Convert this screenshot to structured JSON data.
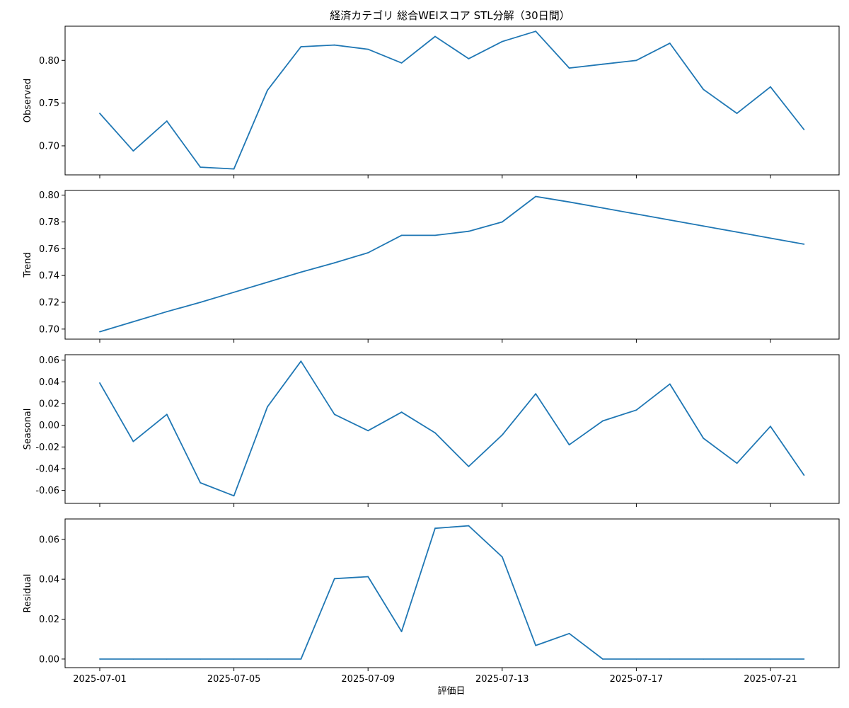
{
  "chart_data": {
    "type": "line",
    "title": "経済カテゴリ 総合WEIスコア STL分解（30日間）",
    "xlabel": "評価日",
    "x": [
      "2025-07-01",
      "2025-07-02",
      "2025-07-03",
      "2025-07-04",
      "2025-07-05",
      "2025-07-06",
      "2025-07-07",
      "2025-07-08",
      "2025-07-09",
      "2025-07-10",
      "2025-07-11",
      "2025-07-12",
      "2025-07-13",
      "2025-07-14",
      "2025-07-15",
      "2025-07-16",
      "2025-07-17",
      "2025-07-18",
      "2025-07-19",
      "2025-07-20",
      "2025-07-21",
      "2025-07-22"
    ],
    "x_ticks": [
      "2025-07-01",
      "2025-07-05",
      "2025-07-09",
      "2025-07-13",
      "2025-07-17",
      "2025-07-21"
    ],
    "color": "#1f77b4",
    "panels": [
      {
        "ylabel": "Observed",
        "ylim": [
          0.666,
          0.84
        ],
        "yticks": [
          "0.70",
          "0.75",
          "0.80"
        ],
        "values": [
          0.738,
          0.694,
          0.729,
          0.675,
          0.673,
          0.765,
          0.816,
          0.818,
          0.813,
          0.797,
          0.828,
          0.802,
          0.822,
          0.834,
          0.791,
          0.7955,
          0.8,
          0.82,
          0.766,
          0.738,
          0.769,
          0.719
        ]
      },
      {
        "ylabel": "Trend",
        "ylim": [
          0.6925,
          0.8035
        ],
        "yticks": [
          "0.70",
          "0.72",
          "0.74",
          "0.76",
          "0.78",
          "0.80"
        ],
        "values": [
          0.698,
          0.7055,
          0.713,
          0.72,
          0.7275,
          0.735,
          0.7425,
          0.7495,
          0.757,
          0.77,
          0.77,
          0.773,
          0.78,
          0.799,
          0.7949,
          0.7904,
          0.7859,
          0.7814,
          0.7769,
          0.7724,
          0.7679,
          0.7634
        ]
      },
      {
        "ylabel": "Seasonal",
        "ylim": [
          -0.072,
          0.065
        ],
        "yticks": [
          "-0.06",
          "-0.04",
          "-0.02",
          "0.00",
          "0.02",
          "0.04",
          "0.06"
        ],
        "values": [
          0.039,
          -0.015,
          0.01,
          -0.053,
          -0.065,
          0.017,
          0.059,
          0.01,
          -0.005,
          0.012,
          -0.007,
          -0.038,
          -0.009,
          0.029,
          -0.018,
          0.004,
          0.014,
          0.038,
          -0.012,
          -0.035,
          -0.001,
          -0.046
        ]
      },
      {
        "ylabel": "Residual",
        "ylim": [
          -0.0043,
          0.0702
        ],
        "yticks": [
          "0.00",
          "0.02",
          "0.04",
          "0.06"
        ],
        "values": [
          0,
          0,
          0,
          0,
          0,
          0,
          0,
          0.0403,
          0.0413,
          0.0138,
          0.0655,
          0.0668,
          0.0512,
          0.0068,
          0.0128,
          0,
          0,
          0,
          0,
          0,
          0,
          0
        ]
      }
    ]
  }
}
